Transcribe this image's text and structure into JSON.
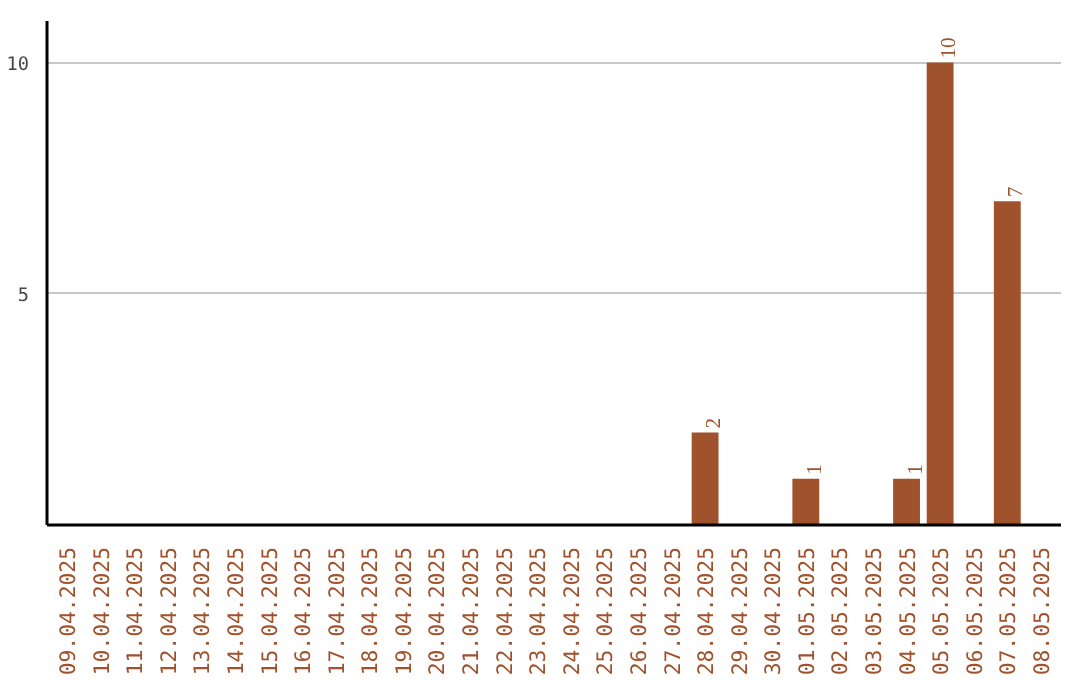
{
  "chart_data": {
    "type": "bar",
    "categories": [
      "09.04.2025",
      "10.04.2025",
      "11.04.2025",
      "12.04.2025",
      "13.04.2025",
      "14.04.2025",
      "15.04.2025",
      "16.04.2025",
      "17.04.2025",
      "18.04.2025",
      "19.04.2025",
      "20.04.2025",
      "21.04.2025",
      "22.04.2025",
      "23.04.2025",
      "24.04.2025",
      "25.04.2025",
      "26.04.2025",
      "27.04.2025",
      "28.04.2025",
      "29.04.2025",
      "30.04.2025",
      "01.05.2025",
      "02.05.2025",
      "03.05.2025",
      "04.05.2025",
      "05.05.2025",
      "06.05.2025",
      "07.05.2025",
      "08.05.2025"
    ],
    "values": [
      0,
      0,
      0,
      0,
      0,
      0,
      0,
      0,
      0,
      0,
      0,
      0,
      0,
      0,
      0,
      0,
      0,
      0,
      0,
      2,
      0,
      0,
      1,
      0,
      0,
      1,
      10,
      0,
      7,
      0
    ],
    "value_labels": [
      null,
      null,
      null,
      null,
      null,
      null,
      null,
      null,
      null,
      null,
      null,
      null,
      null,
      null,
      null,
      null,
      null,
      null,
      null,
      "2",
      null,
      null,
      "1",
      null,
      null,
      "1",
      "10",
      null,
      "7",
      null
    ],
    "color": "#a0522d",
    "ylim": [
      0,
      10.9
    ],
    "yticks": [
      5,
      10
    ],
    "grid": "y"
  }
}
